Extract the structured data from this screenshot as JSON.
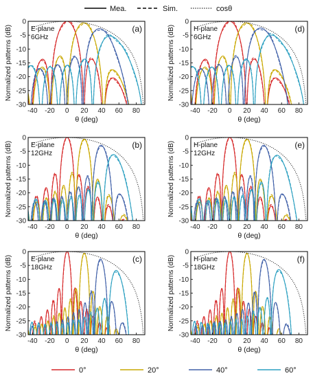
{
  "top_legend": [
    {
      "label": "Mea.",
      "style": "solid"
    },
    {
      "label": "Sim.",
      "style": "dashed"
    },
    {
      "label": "cosθ",
      "style": "dotted"
    }
  ],
  "bottom_legend": [
    {
      "label": "0°",
      "color": "#d62728"
    },
    {
      "label": "20°",
      "color": "#c9a800"
    },
    {
      "label": "40°",
      "color": "#4060a8"
    },
    {
      "label": "60°",
      "color": "#2a9fc0"
    }
  ],
  "xlabel": "θ (deg)",
  "ylabel": "Normalized patterns (dB)",
  "chart_data": [
    {
      "id": "a",
      "type": "line",
      "plane": "E-plane",
      "freq": "6GHz",
      "panel_label": "(a)",
      "xlim": [
        -45,
        90
      ],
      "ylim": [
        -30,
        0
      ],
      "xticks": [
        -40,
        -20,
        0,
        20,
        40,
        60,
        80
      ],
      "yticks": [
        0,
        -5,
        -10,
        -15,
        -20,
        -25,
        -30
      ],
      "series": [
        {
          "steer": "0°",
          "beam_peak_deg": 0,
          "beam_peak_db": 0
        },
        {
          "steer": "20°",
          "beam_peak_deg": 20,
          "beam_peak_db": 0
        },
        {
          "steer": "40°",
          "beam_peak_deg": 40,
          "beam_peak_db": -1
        },
        {
          "steer": "60°",
          "beam_peak_deg": 56,
          "beam_peak_db": -2
        }
      ]
    },
    {
      "id": "d",
      "type": "line",
      "plane": "H-plane",
      "freq": "6GHz",
      "panel_label": "(d)",
      "xlim": [
        -45,
        90
      ],
      "ylim": [
        -30,
        0
      ],
      "xticks": [
        -40,
        -20,
        0,
        20,
        40,
        60,
        80
      ],
      "yticks": [
        0,
        -5,
        -10,
        -15,
        -20,
        -25,
        -30
      ],
      "series": [
        {
          "steer": "0°",
          "beam_peak_deg": 0,
          "beam_peak_db": 0
        },
        {
          "steer": "20°",
          "beam_peak_deg": 20,
          "beam_peak_db": 0
        },
        {
          "steer": "40°",
          "beam_peak_deg": 38,
          "beam_peak_db": -1
        },
        {
          "steer": "60°",
          "beam_peak_deg": 54,
          "beam_peak_db": -2
        }
      ]
    },
    {
      "id": "b",
      "type": "line",
      "plane": "E-plane",
      "freq": "12GHz",
      "panel_label": "(b)",
      "xlim": [
        -45,
        90
      ],
      "ylim": [
        -30,
        0
      ],
      "xticks": [
        -40,
        -20,
        0,
        20,
        40,
        60,
        80
      ],
      "yticks": [
        0,
        -5,
        -10,
        -15,
        -20,
        -25,
        -30
      ],
      "series": [
        {
          "steer": "0°",
          "beam_peak_deg": 0,
          "beam_peak_db": 0
        },
        {
          "steer": "20°",
          "beam_peak_deg": 20,
          "beam_peak_db": 0
        },
        {
          "steer": "40°",
          "beam_peak_deg": 40,
          "beam_peak_db": -1
        },
        {
          "steer": "60°",
          "beam_peak_deg": 56,
          "beam_peak_db": -3
        }
      ]
    },
    {
      "id": "e",
      "type": "line",
      "plane": "H-plane",
      "freq": "12GHz",
      "panel_label": "(e)",
      "xlim": [
        -45,
        90
      ],
      "ylim": [
        -30,
        0
      ],
      "xticks": [
        -40,
        -20,
        0,
        20,
        40,
        60,
        80
      ],
      "yticks": [
        0,
        -5,
        -10,
        -15,
        -20,
        -25,
        -30
      ],
      "series": [
        {
          "steer": "0°",
          "beam_peak_deg": 0,
          "beam_peak_db": 0
        },
        {
          "steer": "20°",
          "beam_peak_deg": 20,
          "beam_peak_db": 0
        },
        {
          "steer": "40°",
          "beam_peak_deg": 40,
          "beam_peak_db": -1
        },
        {
          "steer": "60°",
          "beam_peak_deg": 57,
          "beam_peak_db": -3
        }
      ]
    },
    {
      "id": "c",
      "type": "line",
      "plane": "E-plane",
      "freq": "18GHz",
      "panel_label": "(c)",
      "xlim": [
        -45,
        90
      ],
      "ylim": [
        -30,
        0
      ],
      "xticks": [
        -40,
        -20,
        0,
        20,
        40,
        60,
        80
      ],
      "yticks": [
        0,
        -5,
        -10,
        -15,
        -20,
        -25,
        -30
      ],
      "series": [
        {
          "steer": "0°",
          "beam_peak_deg": 0,
          "beam_peak_db": 0
        },
        {
          "steer": "20°",
          "beam_peak_deg": 20,
          "beam_peak_db": 0
        },
        {
          "steer": "40°",
          "beam_peak_deg": 39,
          "beam_peak_db": -1
        },
        {
          "steer": "60°",
          "beam_peak_deg": 58,
          "beam_peak_db": -3
        }
      ]
    },
    {
      "id": "f",
      "type": "line",
      "plane": "H-plane",
      "freq": "18GHz",
      "panel_label": "(f)",
      "xlim": [
        -45,
        90
      ],
      "ylim": [
        -30,
        0
      ],
      "xticks": [
        -40,
        -20,
        0,
        20,
        40,
        60,
        80
      ],
      "yticks": [
        0,
        -5,
        -10,
        -15,
        -20,
        -25,
        -30
      ],
      "series": [
        {
          "steer": "0°",
          "beam_peak_deg": 0,
          "beam_peak_db": 0
        },
        {
          "steer": "20°",
          "beam_peak_deg": 20,
          "beam_peak_db": 0
        },
        {
          "steer": "40°",
          "beam_peak_deg": 40,
          "beam_peak_db": -1
        },
        {
          "steer": "60°",
          "beam_peak_deg": 58,
          "beam_peak_db": -2
        }
      ]
    }
  ]
}
